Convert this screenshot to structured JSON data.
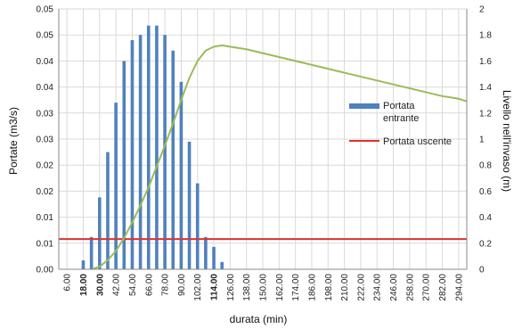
{
  "chart_data": {
    "type": "bar",
    "xlabel": "durata (min)",
    "ylabel": "Portate (m3/s)",
    "y2label": "Livello nell'invaso (m)",
    "ylim": [
      0,
      0.05
    ],
    "y2lim": [
      0,
      2
    ],
    "y_ticks": [
      "0.00",
      "0.01",
      "0.01",
      "0.02",
      "0.02",
      "0.03",
      "0.03",
      "0.04",
      "0.04",
      "0.05",
      "0.05"
    ],
    "y2_ticks": [
      "0",
      "0.2",
      "0.4",
      "0.6",
      "0.8",
      "1",
      "1.2",
      "1.4",
      "1.6",
      "1.8",
      "2"
    ],
    "x_labels": [
      "6.00",
      "18.00",
      "30.00",
      "42.00",
      "54.00",
      "66.00",
      "78.00",
      "90.00",
      "102.00",
      "114.00",
      "126.00",
      "138.00",
      "150.00",
      "162.00",
      "174.00",
      "186.00",
      "198.00",
      "210.00",
      "222.00",
      "234.00",
      "246.00",
      "258.00",
      "270.00",
      "282.00",
      "294.00"
    ],
    "x_bold_labels": [
      "18.00",
      "30.00",
      "114.00"
    ],
    "grid": true,
    "legend_position": "right",
    "series": [
      {
        "name": "Portata entrante",
        "type": "bar",
        "axis": "left",
        "color": "#4f81bd",
        "x": [
          18,
          24,
          30,
          36,
          42,
          48,
          54,
          60,
          66,
          72,
          78,
          84,
          90,
          96,
          102,
          108,
          114,
          120
        ],
        "values": [
          0.0017,
          0.0062,
          0.0138,
          0.0225,
          0.032,
          0.04,
          0.044,
          0.045,
          0.0468,
          0.0468,
          0.045,
          0.042,
          0.036,
          0.0245,
          0.0165,
          0.0062,
          0.0043,
          0.0014
        ]
      },
      {
        "name": "Portata uscente",
        "type": "line",
        "axis": "left",
        "color": "#e03030",
        "x": [
          0,
          300
        ],
        "values": [
          0.0058,
          0.0058
        ]
      },
      {
        "name": "",
        "type": "line",
        "axis": "right",
        "color": "#9bbb59",
        "x": [
          24,
          30,
          36,
          42,
          48,
          54,
          60,
          66,
          72,
          78,
          84,
          90,
          96,
          102,
          108,
          114,
          120,
          126,
          138,
          150,
          162,
          174,
          186,
          198,
          210,
          222,
          234,
          246,
          258,
          270,
          282,
          294,
          300
        ],
        "values": [
          0.0,
          0.02,
          0.07,
          0.14,
          0.24,
          0.36,
          0.49,
          0.63,
          0.79,
          0.95,
          1.12,
          1.3,
          1.47,
          1.6,
          1.68,
          1.71,
          1.72,
          1.71,
          1.69,
          1.66,
          1.63,
          1.6,
          1.57,
          1.54,
          1.51,
          1.48,
          1.45,
          1.42,
          1.39,
          1.36,
          1.33,
          1.31,
          1.29
        ]
      }
    ]
  }
}
